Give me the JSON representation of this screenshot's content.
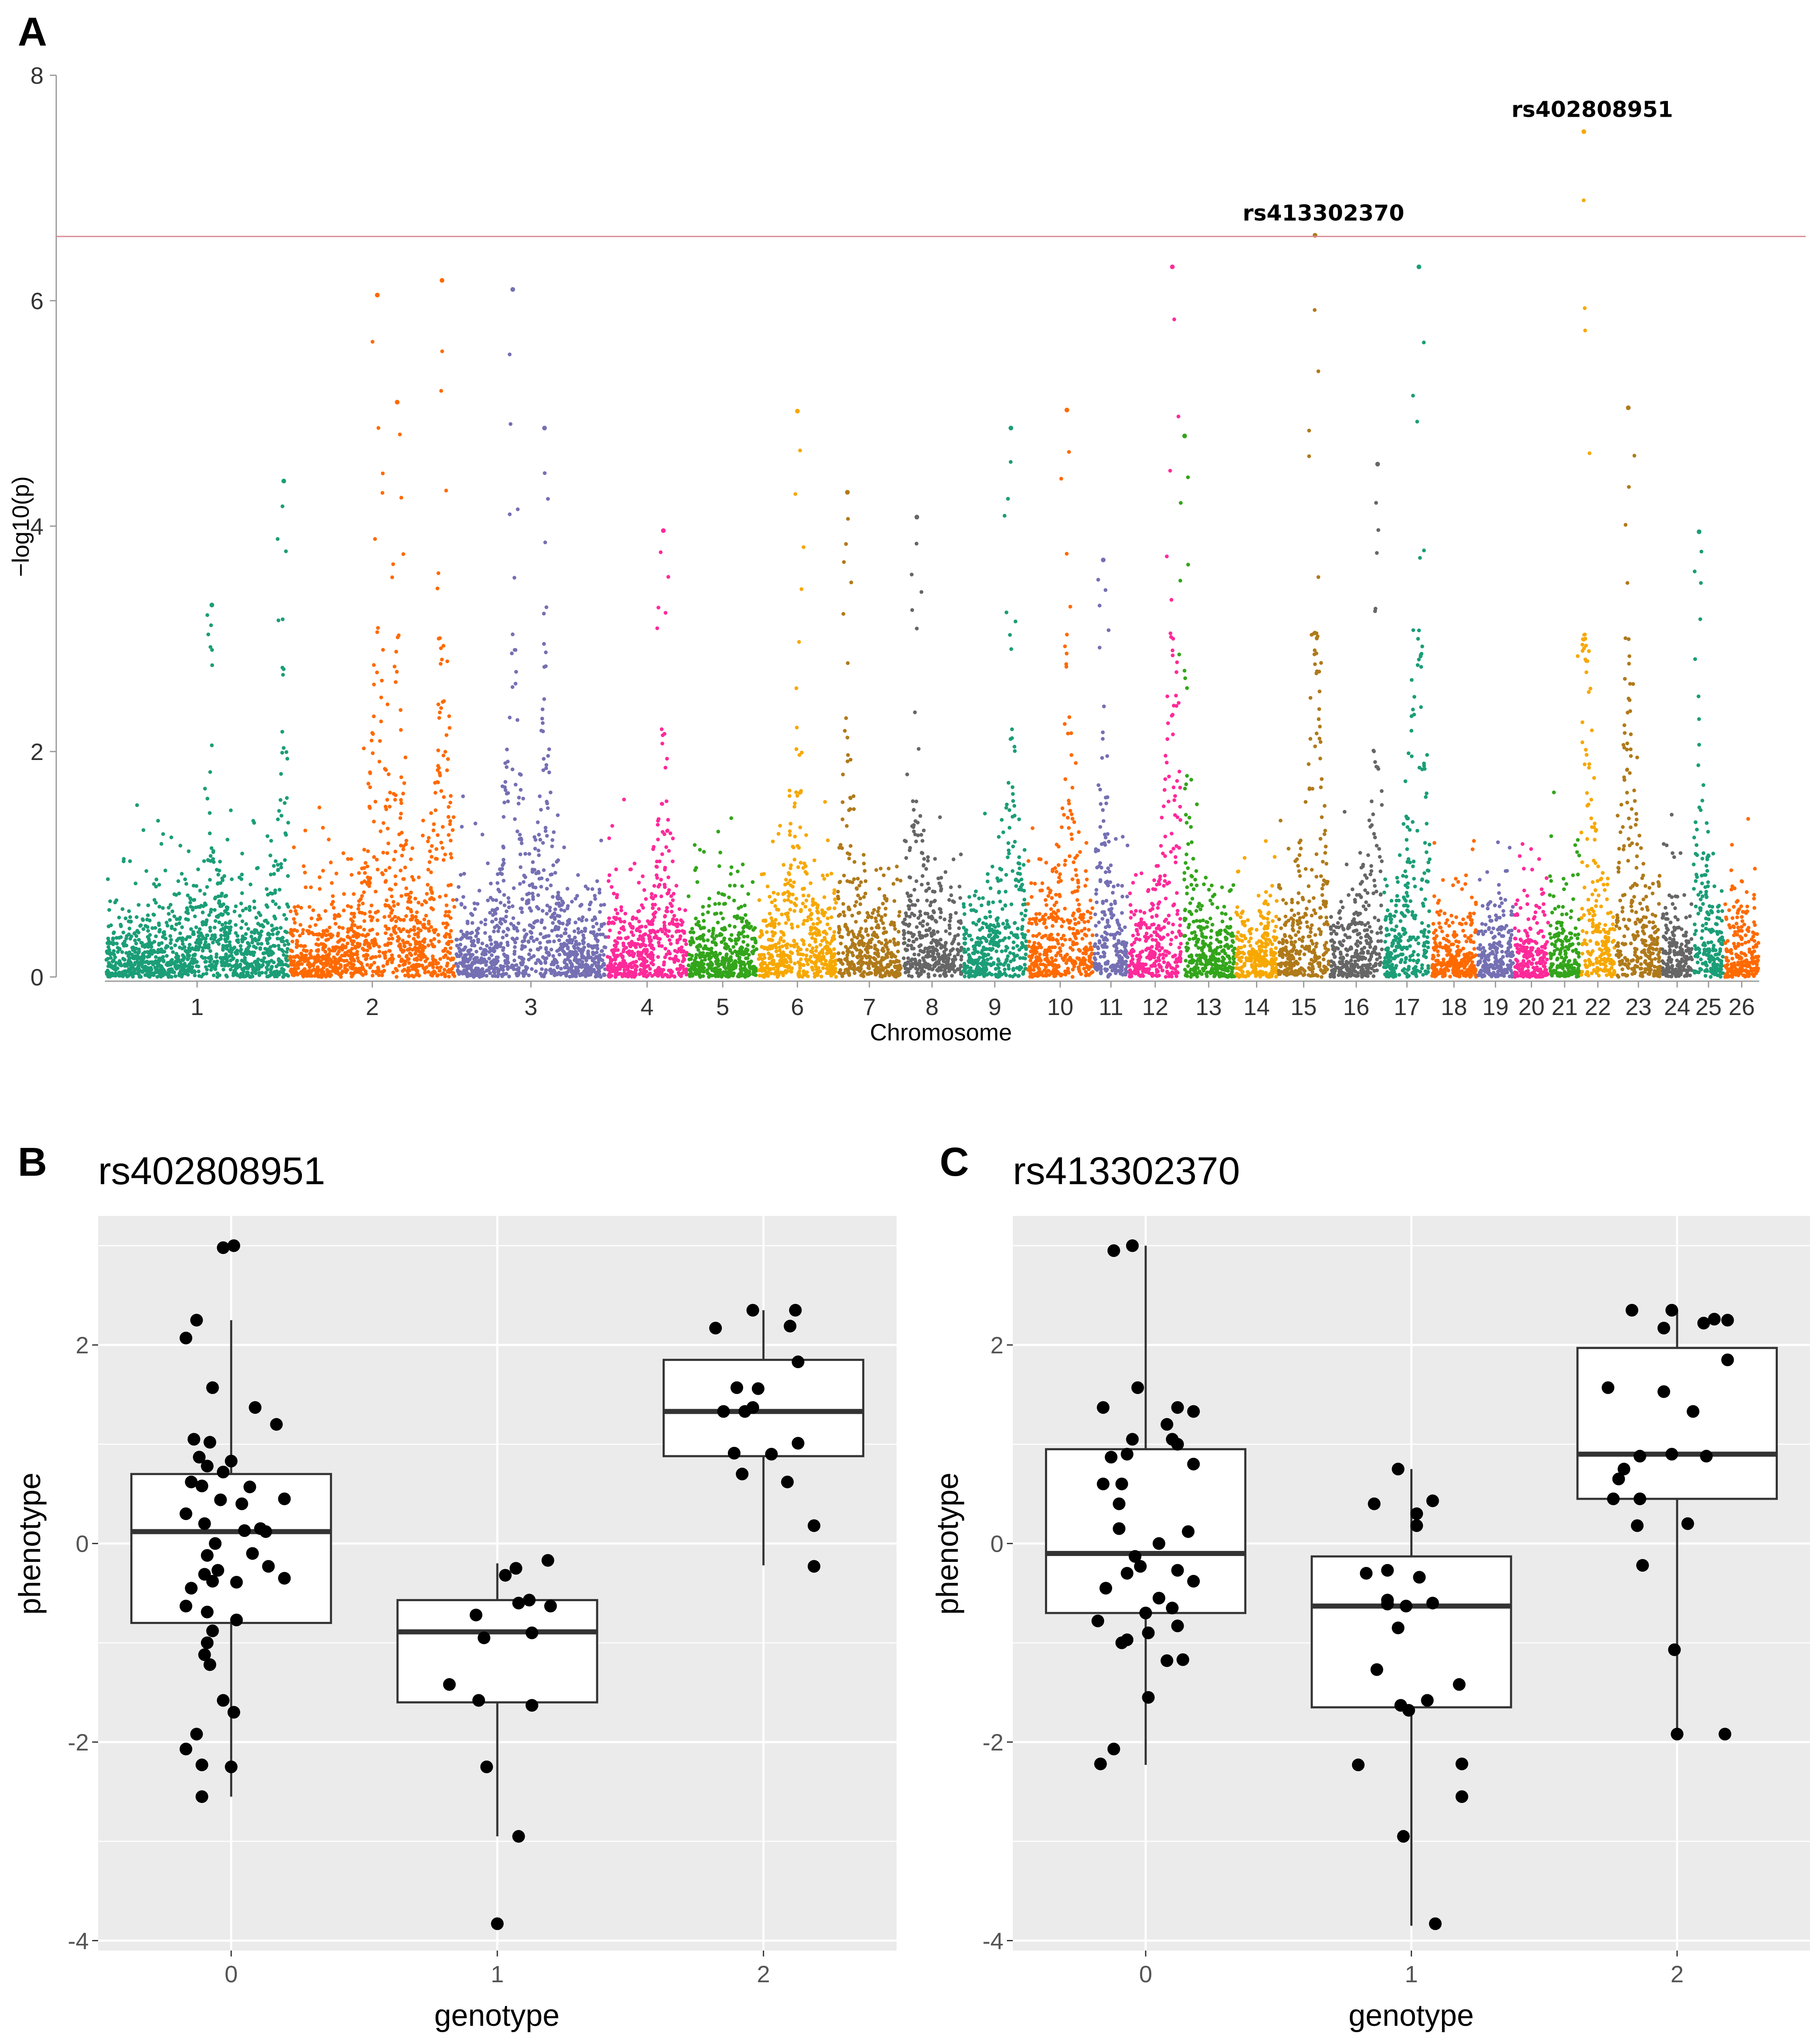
{
  "panels": {
    "a": "A",
    "b": "B",
    "c": "C"
  },
  "chart_data": [
    {
      "id": "manhattan",
      "type": "scatter",
      "title": "",
      "xlabel": "Chromosome",
      "ylabel": "−log10(p)",
      "ylim": [
        0,
        8
      ],
      "yticks": [
        "0",
        "2",
        "4",
        "6",
        "8"
      ],
      "threshold": 6.57,
      "threshold_color": "#d98a95",
      "grid": false,
      "palette": [
        "#1b9e77",
        "#ff6a00",
        "#7570b3",
        "#ff2a9a",
        "#33a51b",
        "#f7a800",
        "#b07a1a",
        "#666666"
      ],
      "chromosomes": [
        {
          "label": "1",
          "size": 1.0
        },
        {
          "label": "2",
          "size": 0.9
        },
        {
          "label": "3",
          "size": 0.82
        },
        {
          "label": "4",
          "size": 0.44
        },
        {
          "label": "5",
          "size": 0.38
        },
        {
          "label": "6",
          "size": 0.43
        },
        {
          "label": "7",
          "size": 0.35
        },
        {
          "label": "8",
          "size": 0.33
        },
        {
          "label": "9",
          "size": 0.35
        },
        {
          "label": "10",
          "size": 0.36
        },
        {
          "label": "11",
          "size": 0.19
        },
        {
          "label": "12",
          "size": 0.29
        },
        {
          "label": "13",
          "size": 0.29
        },
        {
          "label": "14",
          "size": 0.23
        },
        {
          "label": "15",
          "size": 0.28
        },
        {
          "label": "16",
          "size": 0.29
        },
        {
          "label": "17",
          "size": 0.26
        },
        {
          "label": "18",
          "size": 0.25
        },
        {
          "label": "19",
          "size": 0.2
        },
        {
          "label": "20",
          "size": 0.19
        },
        {
          "label": "21",
          "size": 0.17
        },
        {
          "label": "22",
          "size": 0.19
        },
        {
          "label": "23",
          "size": 0.25
        },
        {
          "label": "24",
          "size": 0.17
        },
        {
          "label": "25",
          "size": 0.17
        },
        {
          "label": "26",
          "size": 0.19
        }
      ],
      "peaks": [
        {
          "chr": "1",
          "pos": 0.58,
          "y": 3.3
        },
        {
          "chr": "1",
          "pos": 0.97,
          "y": 4.4
        },
        {
          "chr": "2",
          "pos": 0.53,
          "y": 6.05
        },
        {
          "chr": "2",
          "pos": 0.65,
          "y": 5.1
        },
        {
          "chr": "2",
          "pos": 0.92,
          "y": 6.18
        },
        {
          "chr": "3",
          "pos": 0.38,
          "y": 6.1
        },
        {
          "chr": "3",
          "pos": 0.59,
          "y": 4.87
        },
        {
          "chr": "4",
          "pos": 0.7,
          "y": 3.96
        },
        {
          "chr": "6",
          "pos": 0.5,
          "y": 5.02
        },
        {
          "chr": "7",
          "pos": 0.16,
          "y": 4.3
        },
        {
          "chr": "8",
          "pos": 0.25,
          "y": 4.08
        },
        {
          "chr": "9",
          "pos": 0.75,
          "y": 4.87
        },
        {
          "chr": "10",
          "pos": 0.6,
          "y": 5.03
        },
        {
          "chr": "11",
          "pos": 0.28,
          "y": 3.7
        },
        {
          "chr": "12",
          "pos": 0.82,
          "y": 6.3
        },
        {
          "chr": "13",
          "pos": 0.05,
          "y": 4.8
        },
        {
          "chr": "15",
          "pos": 0.72,
          "y": 6.58
        },
        {
          "chr": "16",
          "pos": 0.9,
          "y": 4.55
        },
        {
          "chr": "17",
          "pos": 0.75,
          "y": 6.3
        },
        {
          "chr": "22",
          "pos": 0.1,
          "y": 7.5
        },
        {
          "chr": "23",
          "pos": 0.28,
          "y": 5.05
        },
        {
          "chr": "25",
          "pos": 0.2,
          "y": 3.95
        }
      ],
      "labels": [
        {
          "text": "rs413302370",
          "chr": "15",
          "pos": 0.72,
          "y": 6.58
        },
        {
          "text": "rs402808951",
          "chr": "22",
          "pos": 0.1,
          "y": 7.5
        }
      ]
    },
    {
      "id": "box-rs402808951",
      "type": "box",
      "title": "rs402808951",
      "xlabel": "genotype",
      "ylabel": "phenotype",
      "categories": [
        "0",
        "1",
        "2"
      ],
      "ylim": [
        -4.1,
        3.3
      ],
      "yticks": [
        -4,
        -2,
        0,
        2
      ],
      "ytick_labels": [
        "-4",
        "-2",
        "0",
        "2"
      ],
      "boxes": [
        {
          "q1": -0.8,
          "median": 0.12,
          "q3": 0.7,
          "whisker_low": -2.55,
          "whisker_high": 2.25
        },
        {
          "q1": -1.6,
          "median": -0.89,
          "q3": -0.57,
          "whisker_low": -2.95,
          "whisker_high": -0.2
        },
        {
          "q1": 0.88,
          "median": 1.33,
          "q3": 1.85,
          "whisker_low": -0.22,
          "whisker_high": 2.35
        }
      ],
      "points": [
        {
          "g": 0,
          "x": -0.03,
          "y": 2.98
        },
        {
          "g": 0,
          "x": 0.01,
          "y": 3.0
        },
        {
          "g": 0,
          "x": -0.17,
          "y": 2.07
        },
        {
          "g": 0,
          "x": -0.13,
          "y": 2.25
        },
        {
          "g": 0,
          "x": -0.07,
          "y": 1.57
        },
        {
          "g": 0,
          "x": 0.09,
          "y": 1.37
        },
        {
          "g": 0,
          "x": 0.17,
          "y": 1.2
        },
        {
          "g": 0,
          "x": -0.14,
          "y": 1.05
        },
        {
          "g": 0,
          "x": -0.08,
          "y": 1.02
        },
        {
          "g": 0,
          "x": -0.12,
          "y": 0.87
        },
        {
          "g": 0,
          "x": 0.0,
          "y": 0.83
        },
        {
          "g": 0,
          "x": -0.09,
          "y": 0.78
        },
        {
          "g": 0,
          "x": -0.03,
          "y": 0.72
        },
        {
          "g": 0,
          "x": -0.15,
          "y": 0.62
        },
        {
          "g": 0,
          "x": -0.11,
          "y": 0.58
        },
        {
          "g": 0,
          "x": 0.07,
          "y": 0.57
        },
        {
          "g": 0,
          "x": 0.2,
          "y": 0.45
        },
        {
          "g": 0,
          "x": -0.04,
          "y": 0.44
        },
        {
          "g": 0,
          "x": 0.04,
          "y": 0.4
        },
        {
          "g": 0,
          "x": -0.17,
          "y": 0.3
        },
        {
          "g": 0,
          "x": -0.1,
          "y": 0.2
        },
        {
          "g": 0,
          "x": 0.11,
          "y": 0.15
        },
        {
          "g": 0,
          "x": 0.05,
          "y": 0.13
        },
        {
          "g": 0,
          "x": 0.13,
          "y": 0.12
        },
        {
          "g": 0,
          "x": -0.06,
          "y": 0.0
        },
        {
          "g": 0,
          "x": 0.08,
          "y": -0.1
        },
        {
          "g": 0,
          "x": -0.09,
          "y": -0.12
        },
        {
          "g": 0,
          "x": 0.14,
          "y": -0.23
        },
        {
          "g": 0,
          "x": -0.05,
          "y": -0.27
        },
        {
          "g": 0,
          "x": 0.2,
          "y": -0.35
        },
        {
          "g": 0,
          "x": -0.15,
          "y": -0.45
        },
        {
          "g": 0,
          "x": -0.1,
          "y": -0.31
        },
        {
          "g": 0,
          "x": -0.07,
          "y": -0.38
        },
        {
          "g": 0,
          "x": 0.02,
          "y": -0.39
        },
        {
          "g": 0,
          "x": -0.17,
          "y": -0.63
        },
        {
          "g": 0,
          "x": -0.09,
          "y": -0.69
        },
        {
          "g": 0,
          "x": 0.02,
          "y": -0.77
        },
        {
          "g": 0,
          "x": -0.07,
          "y": -0.88
        },
        {
          "g": 0,
          "x": -0.09,
          "y": -1.0
        },
        {
          "g": 0,
          "x": -0.1,
          "y": -1.12
        },
        {
          "g": 0,
          "x": -0.08,
          "y": -1.22
        },
        {
          "g": 0,
          "x": -0.03,
          "y": -1.58
        },
        {
          "g": 0,
          "x": 0.01,
          "y": -1.7
        },
        {
          "g": 0,
          "x": -0.17,
          "y": -2.07
        },
        {
          "g": 0,
          "x": -0.13,
          "y": -1.92
        },
        {
          "g": 0,
          "x": -0.11,
          "y": -2.23
        },
        {
          "g": 0,
          "x": 0.0,
          "y": -2.25
        },
        {
          "g": 0,
          "x": -0.11,
          "y": -2.55
        },
        {
          "g": 1,
          "x": 0.07,
          "y": -0.25
        },
        {
          "g": 1,
          "x": 0.03,
          "y": -0.32
        },
        {
          "g": 1,
          "x": 0.19,
          "y": -0.17
        },
        {
          "g": 1,
          "x": 0.08,
          "y": -0.6
        },
        {
          "g": 1,
          "x": 0.2,
          "y": -0.63
        },
        {
          "g": 1,
          "x": 0.12,
          "y": -0.57
        },
        {
          "g": 1,
          "x": -0.08,
          "y": -0.72
        },
        {
          "g": 1,
          "x": 0.13,
          "y": -0.9
        },
        {
          "g": 1,
          "x": -0.05,
          "y": -0.95
        },
        {
          "g": 1,
          "x": -0.18,
          "y": -1.42
        },
        {
          "g": 1,
          "x": -0.07,
          "y": -1.58
        },
        {
          "g": 1,
          "x": 0.13,
          "y": -1.63
        },
        {
          "g": 1,
          "x": -0.04,
          "y": -2.25
        },
        {
          "g": 1,
          "x": 0.08,
          "y": -2.95
        },
        {
          "g": 1,
          "x": 0.0,
          "y": -3.83
        },
        {
          "g": 2,
          "x": -0.04,
          "y": 2.35
        },
        {
          "g": 2,
          "x": 0.12,
          "y": 2.35
        },
        {
          "g": 2,
          "x": -0.18,
          "y": 2.17
        },
        {
          "g": 2,
          "x": 0.1,
          "y": 2.19
        },
        {
          "g": 2,
          "x": 0.13,
          "y": 1.83
        },
        {
          "g": 2,
          "x": -0.1,
          "y": 1.57
        },
        {
          "g": 2,
          "x": -0.02,
          "y": 1.56
        },
        {
          "g": 2,
          "x": -0.15,
          "y": 1.33
        },
        {
          "g": 2,
          "x": -0.07,
          "y": 1.33
        },
        {
          "g": 2,
          "x": -0.04,
          "y": 1.37
        },
        {
          "g": 2,
          "x": 0.13,
          "y": 1.01
        },
        {
          "g": 2,
          "x": -0.11,
          "y": 0.91
        },
        {
          "g": 2,
          "x": 0.03,
          "y": 0.9
        },
        {
          "g": 2,
          "x": -0.08,
          "y": 0.7
        },
        {
          "g": 2,
          "x": 0.09,
          "y": 0.62
        },
        {
          "g": 2,
          "x": 0.19,
          "y": 0.18
        },
        {
          "g": 2,
          "x": 0.19,
          "y": -0.23
        }
      ]
    },
    {
      "id": "box-rs413302370",
      "type": "box",
      "title": "rs413302370",
      "xlabel": "genotype",
      "ylabel": "phenotype",
      "categories": [
        "0",
        "1",
        "2"
      ],
      "ylim": [
        -4.1,
        3.3
      ],
      "yticks": [
        -4,
        -2,
        0,
        2
      ],
      "ytick_labels": [
        "-4",
        "-2",
        "0",
        "2"
      ],
      "boxes": [
        {
          "q1": -0.7,
          "median": -0.1,
          "q3": 0.95,
          "whisker_low": -2.23,
          "whisker_high": 3.0
        },
        {
          "q1": -1.65,
          "median": -0.63,
          "q3": -0.13,
          "whisker_low": -3.85,
          "whisker_high": 0.75
        },
        {
          "q1": 0.45,
          "median": 0.9,
          "q3": 1.97,
          "whisker_low": -1.92,
          "whisker_high": 2.35
        }
      ],
      "points": [
        {
          "g": 0,
          "x": -0.12,
          "y": 2.95
        },
        {
          "g": 0,
          "x": -0.05,
          "y": 3.0
        },
        {
          "g": 0,
          "x": -0.03,
          "y": 1.57
        },
        {
          "g": 0,
          "x": -0.16,
          "y": 1.37
        },
        {
          "g": 0,
          "x": 0.12,
          "y": 1.37
        },
        {
          "g": 0,
          "x": 0.18,
          "y": 1.33
        },
        {
          "g": 0,
          "x": 0.08,
          "y": 1.2
        },
        {
          "g": 0,
          "x": 0.1,
          "y": 1.05
        },
        {
          "g": 0,
          "x": -0.05,
          "y": 1.05
        },
        {
          "g": 0,
          "x": 0.12,
          "y": 1.0
        },
        {
          "g": 0,
          "x": -0.13,
          "y": 0.87
        },
        {
          "g": 0,
          "x": -0.07,
          "y": 0.9
        },
        {
          "g": 0,
          "x": 0.18,
          "y": 0.8
        },
        {
          "g": 0,
          "x": -0.16,
          "y": 0.6
        },
        {
          "g": 0,
          "x": -0.09,
          "y": 0.6
        },
        {
          "g": 0,
          "x": -0.1,
          "y": 0.4
        },
        {
          "g": 0,
          "x": -0.1,
          "y": 0.15
        },
        {
          "g": 0,
          "x": 0.16,
          "y": 0.12
        },
        {
          "g": 0,
          "x": 0.05,
          "y": 0.0
        },
        {
          "g": 0,
          "x": -0.04,
          "y": -0.13
        },
        {
          "g": 0,
          "x": -0.02,
          "y": -0.23
        },
        {
          "g": 0,
          "x": -0.07,
          "y": -0.3
        },
        {
          "g": 0,
          "x": 0.12,
          "y": -0.27
        },
        {
          "g": 0,
          "x": 0.18,
          "y": -0.38
        },
        {
          "g": 0,
          "x": -0.15,
          "y": -0.45
        },
        {
          "g": 0,
          "x": 0.05,
          "y": -0.55
        },
        {
          "g": 0,
          "x": 0.1,
          "y": -0.65
        },
        {
          "g": 0,
          "x": 0.0,
          "y": -0.7
        },
        {
          "g": 0,
          "x": -0.18,
          "y": -0.78
        },
        {
          "g": 0,
          "x": 0.12,
          "y": -0.83
        },
        {
          "g": 0,
          "x": 0.01,
          "y": -0.9
        },
        {
          "g": 0,
          "x": -0.07,
          "y": -0.97
        },
        {
          "g": 0,
          "x": -0.09,
          "y": -1.0
        },
        {
          "g": 0,
          "x": 0.08,
          "y": -1.18
        },
        {
          "g": 0,
          "x": 0.14,
          "y": -1.17
        },
        {
          "g": 0,
          "x": 0.01,
          "y": -1.55
        },
        {
          "g": 0,
          "x": -0.12,
          "y": -2.07
        },
        {
          "g": 0,
          "x": -0.17,
          "y": -2.22
        },
        {
          "g": 1,
          "x": -0.05,
          "y": 0.75
        },
        {
          "g": 1,
          "x": -0.14,
          "y": 0.4
        },
        {
          "g": 1,
          "x": 0.08,
          "y": 0.43
        },
        {
          "g": 1,
          "x": 0.02,
          "y": 0.3
        },
        {
          "g": 1,
          "x": 0.02,
          "y": 0.18
        },
        {
          "g": 1,
          "x": -0.09,
          "y": -0.27
        },
        {
          "g": 1,
          "x": 0.03,
          "y": -0.34
        },
        {
          "g": 1,
          "x": -0.17,
          "y": -0.3
        },
        {
          "g": 1,
          "x": -0.09,
          "y": -0.57
        },
        {
          "g": 1,
          "x": 0.08,
          "y": -0.6
        },
        {
          "g": 1,
          "x": -0.09,
          "y": -0.61
        },
        {
          "g": 1,
          "x": -0.02,
          "y": -0.63
        },
        {
          "g": 1,
          "x": -0.05,
          "y": -0.85
        },
        {
          "g": 1,
          "x": -0.13,
          "y": -1.27
        },
        {
          "g": 1,
          "x": 0.18,
          "y": -1.42
        },
        {
          "g": 1,
          "x": -0.04,
          "y": -1.63
        },
        {
          "g": 1,
          "x": 0.06,
          "y": -1.58
        },
        {
          "g": 1,
          "x": -0.01,
          "y": -1.68
        },
        {
          "g": 1,
          "x": -0.2,
          "y": -2.23
        },
        {
          "g": 1,
          "x": 0.19,
          "y": -2.22
        },
        {
          "g": 1,
          "x": 0.19,
          "y": -2.55
        },
        {
          "g": 1,
          "x": -0.03,
          "y": -2.95
        },
        {
          "g": 1,
          "x": 0.09,
          "y": -3.83
        },
        {
          "g": 2,
          "x": -0.02,
          "y": 2.35
        },
        {
          "g": 2,
          "x": 0.1,
          "y": 2.22
        },
        {
          "g": 2,
          "x": 0.14,
          "y": 2.26
        },
        {
          "g": 2,
          "x": 0.19,
          "y": 2.25
        },
        {
          "g": 2,
          "x": -0.17,
          "y": 2.35
        },
        {
          "g": 2,
          "x": -0.05,
          "y": 2.17
        },
        {
          "g": 2,
          "x": 0.19,
          "y": 1.85
        },
        {
          "g": 2,
          "x": -0.26,
          "y": 1.57
        },
        {
          "g": 2,
          "x": -0.05,
          "y": 1.53
        },
        {
          "g": 2,
          "x": 0.06,
          "y": 1.33
        },
        {
          "g": 2,
          "x": -0.14,
          "y": 0.88
        },
        {
          "g": 2,
          "x": -0.02,
          "y": 0.9
        },
        {
          "g": 2,
          "x": 0.11,
          "y": 0.88
        },
        {
          "g": 2,
          "x": -0.22,
          "y": 0.65
        },
        {
          "g": 2,
          "x": -0.2,
          "y": 0.75
        },
        {
          "g": 2,
          "x": -0.24,
          "y": 0.45
        },
        {
          "g": 2,
          "x": -0.14,
          "y": 0.45
        },
        {
          "g": 2,
          "x": -0.15,
          "y": 0.18
        },
        {
          "g": 2,
          "x": 0.04,
          "y": 0.2
        },
        {
          "g": 2,
          "x": -0.13,
          "y": -0.22
        },
        {
          "g": 2,
          "x": -0.01,
          "y": -1.07
        },
        {
          "g": 2,
          "x": 0.0,
          "y": -1.92
        },
        {
          "g": 2,
          "x": 0.18,
          "y": -1.92
        }
      ]
    }
  ]
}
